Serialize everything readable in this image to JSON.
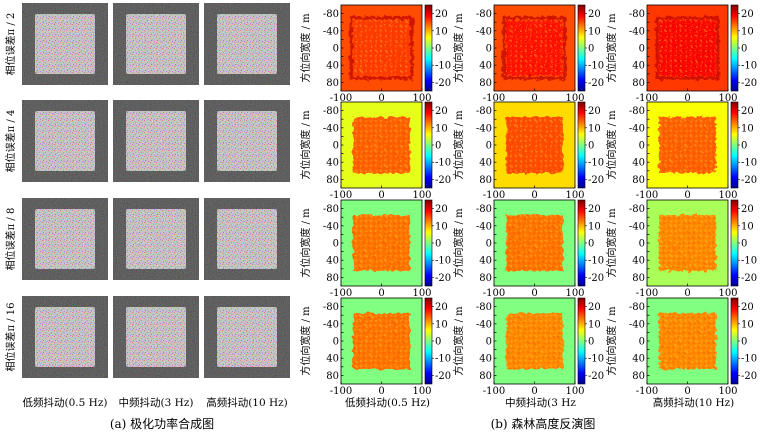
{
  "row_labels": [
    "相位误差π / 2",
    "相位误差π / 4",
    "相位误差π / 8",
    "相位误差π / 16"
  ],
  "col_labels_a": [
    "低频抖动(0.5 Hz)",
    "中频抖动(3 Hz)",
    "高频抖动(10 Hz)"
  ],
  "col_labels_b": [
    "低频抖动(0.5 Hz)",
    "中频抖动(3 Hz",
    "高频抖动(10 Hz)"
  ],
  "caption_a": "(a) 极化功率合成图",
  "caption_b": "(b) 森林高度反演图",
  "axis": {
    "ylabel": "方位向宽度 / m",
    "yticks": [
      "-80",
      "-60",
      "-40",
      "-20",
      "0",
      "20",
      "40",
      "60",
      "80"
    ],
    "xticks": [
      "-100",
      "0",
      "100"
    ]
  },
  "colorbar": {
    "ticks": [
      "20",
      "10",
      "0",
      "-10",
      "-20"
    ],
    "range": [
      -25,
      25
    ]
  },
  "chart_data": {
    "type": "heatmap",
    "rows": [
      "相位误差π / 2",
      "相位误差π / 4",
      "相位误差π / 8",
      "相位误差π / 16"
    ],
    "columns": [
      "低频抖动(0.5 Hz)",
      "中频抖动(3 Hz",
      "高频抖动(10 Hz)"
    ],
    "x_range": [
      -100,
      100
    ],
    "y_range": [
      -100,
      100
    ],
    "y_inverted": true,
    "color_range": [
      -25,
      25
    ],
    "colormap": "jet"
  }
}
